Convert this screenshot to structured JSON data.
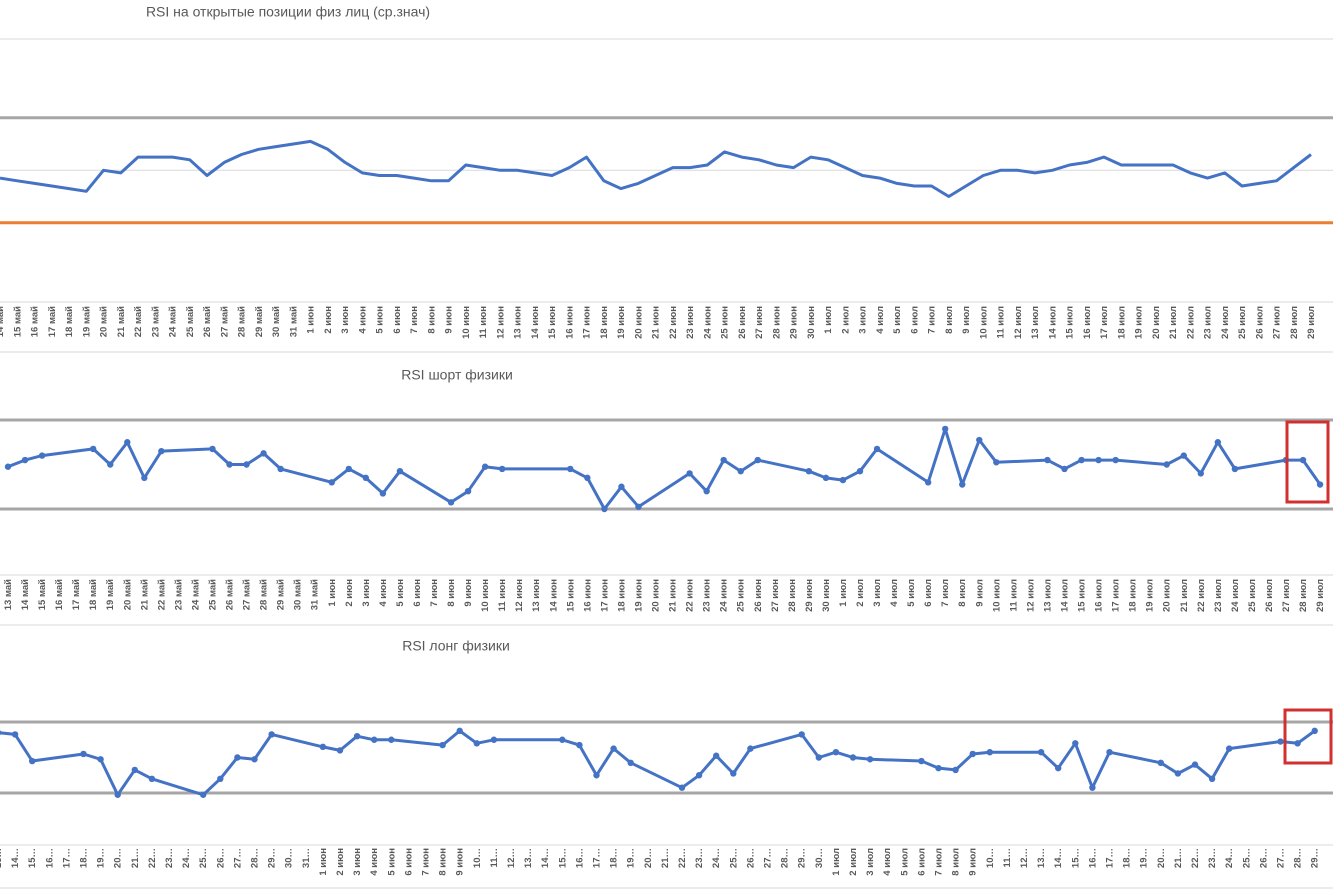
{
  "chart_data": [
    {
      "type": "line",
      "title": "RSI на открытые позиции физ лиц (ср.знач)",
      "color": "#4472c4",
      "markers": false,
      "ylim": [
        0,
        100
      ],
      "reference_lines": [
        {
          "value": 100,
          "color": "#d9d9d9"
        },
        {
          "value": 70,
          "color": "#a6a6a6"
        },
        {
          "value": 50,
          "color": "#d9d9d9"
        },
        {
          "value": 30,
          "color": "#ed7d31"
        }
      ],
      "categories": [
        "14 май",
        "15 май",
        "16 май",
        "17 май",
        "18 май",
        "19 май",
        "20 май",
        "21 май",
        "22 май",
        "23 май",
        "24 май",
        "25 май",
        "26 май",
        "27 май",
        "28 май",
        "29 май",
        "30 май",
        "31 май",
        "1 июн",
        "2 июн",
        "3 июн",
        "4 июн",
        "5 июн",
        "6 июн",
        "7 июн",
        "8 июн",
        "9 июн",
        "10 июн",
        "11 июн",
        "12 июн",
        "13 июн",
        "14 июн",
        "15 июн",
        "16 июн",
        "17 июн",
        "18 июн",
        "19 июн",
        "20 июн",
        "21 июн",
        "22 июн",
        "23 июн",
        "24 июн",
        "25 июн",
        "26 июн",
        "27 июн",
        "28 июн",
        "29 июн",
        "30 июн",
        "1 июл",
        "2 июл",
        "3 июл",
        "4 июл",
        "5 июл",
        "6 июл",
        "7 июл",
        "8 июл",
        "9 июл",
        "10 июл",
        "11 июл",
        "12 июл",
        "13 июл",
        "14 июл",
        "15 июл",
        "16 июл",
        "17 июл",
        "18 июл",
        "19 июл",
        "20 июл",
        "21 июл",
        "22 июл",
        "23 июл",
        "24 июл",
        "25 июл",
        "26 июл",
        "27 июл",
        "28 июл",
        "29 июл"
      ],
      "values": [
        47,
        46,
        45,
        44,
        43,
        42,
        50,
        49,
        55,
        55,
        55,
        54,
        48,
        53,
        56,
        58,
        59,
        60,
        61,
        58,
        53,
        49,
        48,
        48,
        47,
        46,
        46,
        52,
        51,
        50,
        50,
        49,
        48,
        51,
        55,
        46,
        43,
        45,
        48,
        51,
        51,
        52,
        57,
        55,
        54,
        52,
        51,
        55,
        54,
        51,
        48,
        47,
        45,
        44,
        44,
        40,
        44,
        48,
        50,
        50,
        49,
        50,
        52,
        53,
        55,
        52,
        52,
        52,
        52,
        49,
        47,
        49,
        44,
        45,
        46,
        51,
        56
      ]
    },
    {
      "type": "line",
      "title": "RSI шорт физики",
      "color": "#4472c4",
      "markers": true,
      "ylim": [
        10,
        80
      ],
      "reference_lines": [
        {
          "value": 70,
          "color": "#a6a6a6"
        },
        {
          "value": 30,
          "color": "#a6a6a6"
        }
      ],
      "categories": [
        "13 май",
        "14 май",
        "15 май",
        "16 май",
        "17 май",
        "18 май",
        "19 май",
        "20 май",
        "21 май",
        "22 май",
        "23 май",
        "24 май",
        "25 май",
        "26 май",
        "27 май",
        "28 май",
        "29 май",
        "30 май",
        "31 май",
        "1 июн",
        "2 июн",
        "3 июн",
        "4 июн",
        "5 июн",
        "6 июн",
        "7 июн",
        "8 июн",
        "9 июн",
        "10 июн",
        "11 июн",
        "12 июн",
        "13 июн",
        "14 июн",
        "15 июн",
        "16 июн",
        "17 июн",
        "18 июн",
        "19 июн",
        "20 июн",
        "21 июн",
        "22 июн",
        "23 июн",
        "24 июн",
        "25 июн",
        "26 июн",
        "27 июн",
        "28 июн",
        "29 июн",
        "30 июн",
        "1 июл",
        "2 июл",
        "3 июл",
        "4 июл",
        "5 июл",
        "6 июл",
        "7 июл",
        "8 июл",
        "9 июл",
        "10 июл",
        "11 июл",
        "12 июл",
        "13 июл",
        "14 июл",
        "15 июл",
        "16 июл",
        "17 июл",
        "18 июл",
        "19 июл",
        "20 июл",
        "21 июл",
        "22 июл",
        "23 июл",
        "24 июл",
        "25 июл",
        "26 июл",
        "27 июл",
        "28 июл",
        "29 июл"
      ],
      "x": [
        "13 май",
        "14 май",
        "15 май",
        "18 май",
        "19 май",
        "20 май",
        "21 май",
        "22 май",
        "25 май",
        "26 май",
        "27 май",
        "28 май",
        "29 май",
        "1 июн",
        "2 июн",
        "3 июн",
        "4 июн",
        "5 июн",
        "8 июн",
        "9 июн",
        "10 июн",
        "11 июн",
        "15 июн",
        "16 июн",
        "17 июн",
        "18 июн",
        "19 июн",
        "22 июн",
        "23 июн",
        "24 июн",
        "25 июн",
        "26 июн",
        "29 июн",
        "30 июн",
        "1 июл",
        "2 июл",
        "3 июл",
        "6 июл",
        "7 июл",
        "8 июл",
        "9 июл",
        "10 июл",
        "13 июл",
        "14 июл",
        "15 июл",
        "16 июл",
        "17 июл",
        "20 июл",
        "21 июл",
        "22 июл",
        "23 июл",
        "24 июл",
        "27 июл",
        "28 июл",
        "29 июл"
      ],
      "values": [
        49,
        52,
        54,
        57,
        50,
        60,
        44,
        56,
        57,
        50,
        50,
        55,
        48,
        42,
        48,
        44,
        37,
        47,
        33,
        38,
        49,
        48,
        48,
        44,
        30,
        40,
        31,
        46,
        38,
        52,
        47,
        52,
        47,
        44,
        43,
        47,
        57,
        42,
        66,
        41,
        61,
        51,
        52,
        48,
        52,
        52,
        52,
        50,
        54,
        46,
        60,
        48,
        52,
        52,
        41
      ]
    },
    {
      "type": "line",
      "title": "RSI лонг физики",
      "color": "#4472c4",
      "markers": true,
      "ylim": [
        10,
        80
      ],
      "reference_lines": [
        {
          "value": 70,
          "color": "#a6a6a6"
        },
        {
          "value": 30,
          "color": "#a6a6a6"
        }
      ],
      "categories": [
        "13…",
        "14…",
        "15…",
        "16…",
        "17…",
        "18…",
        "19…",
        "20…",
        "21…",
        "22…",
        "23…",
        "24…",
        "25…",
        "26…",
        "27…",
        "28…",
        "29…",
        "30…",
        "31…",
        "1 июн",
        "2 июн",
        "3 июн",
        "4 июн",
        "5 июн",
        "6 июн",
        "7 июн",
        "8 июн",
        "9 июн",
        "10…",
        "11…",
        "12…",
        "13…",
        "14…",
        "15…",
        "16…",
        "17…",
        "18…",
        "19…",
        "20…",
        "21…",
        "22…",
        "23…",
        "24…",
        "25…",
        "26…",
        "27…",
        "28…",
        "29…",
        "30…",
        "1 июл",
        "2 июл",
        "3 июл",
        "4 июл",
        "5 июл",
        "6 июл",
        "7 июл",
        "8 июл",
        "9 июл",
        "10…",
        "11…",
        "12…",
        "13…",
        "14…",
        "15…",
        "16…",
        "17…",
        "18…",
        "19…",
        "20…",
        "21…",
        "22…",
        "23…",
        "24…",
        "25…",
        "26…",
        "27…",
        "28…",
        "29…"
      ],
      "x": [
        "13…",
        "14…",
        "15…",
        "18…",
        "19…",
        "20…",
        "21…",
        "22…",
        "25…",
        "26…",
        "27…",
        "28…",
        "29…",
        "1 июн",
        "2 июн",
        "3 июн",
        "4 июн",
        "5 июн",
        "8 июн",
        "9 июн",
        "10…",
        "11…",
        "15…",
        "16…",
        "17…",
        "18…",
        "19…",
        "22…",
        "23…",
        "24…",
        "25…",
        "26…",
        "29…",
        "30…",
        "1 июл",
        "2 июл",
        "3 июл",
        "6 июл",
        "7 июл",
        "8 июл",
        "9 июл",
        "10…",
        "13…",
        "14…",
        "15…",
        "16…",
        "17…",
        "20…",
        "21…",
        "22…",
        "23…",
        "24…",
        "27…",
        "28…",
        "29…"
      ],
      "values": [
        64,
        63,
        48,
        52,
        49,
        29,
        43,
        38,
        29,
        38,
        50,
        49,
        63,
        56,
        54,
        62,
        60,
        60,
        57,
        65,
        58,
        60,
        60,
        57,
        40,
        55,
        47,
        33,
        40,
        51,
        41,
        55,
        63,
        50,
        53,
        50,
        49,
        48,
        44,
        43,
        52,
        53,
        53,
        44,
        58,
        33,
        53,
        47,
        41,
        46,
        38,
        55,
        59,
        58,
        65
      ]
    }
  ]
}
